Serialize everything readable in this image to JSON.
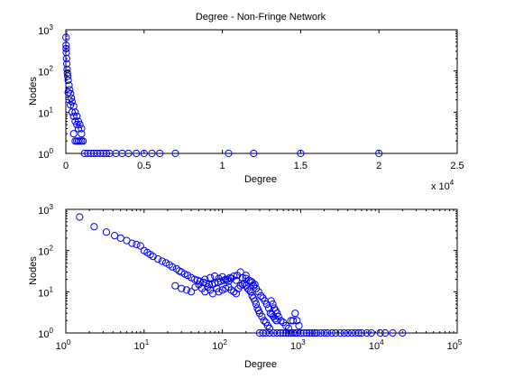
{
  "chart_data": [
    {
      "type": "scatter",
      "title": "Degree - Non-Fringe Network",
      "xlabel": "Degree",
      "ylabel": "Nodes",
      "x_scale": "linear",
      "y_scale": "log",
      "xlim": [
        0,
        25000
      ],
      "ylim": [
        1,
        1000
      ],
      "x_ticks": [
        "0",
        "0.5",
        "1",
        "1.5",
        "2",
        "2.5"
      ],
      "x_multiplier": "x 10",
      "x_multiplier_exp": "4",
      "y_ticks": [
        {
          "base": "10",
          "exp": "0"
        },
        {
          "base": "10",
          "exp": "1"
        },
        {
          "base": "10",
          "exp": "2"
        },
        {
          "base": "10",
          "exp": "3"
        }
      ],
      "marker": "open-circle",
      "marker_color": "#0000ff",
      "points": [
        [
          10,
          650
        ],
        [
          15,
          420
        ],
        [
          22,
          350
        ],
        [
          30,
          280
        ],
        [
          45,
          200
        ],
        [
          60,
          150
        ],
        [
          80,
          110
        ],
        [
          100,
          90
        ],
        [
          120,
          75
        ],
        [
          150,
          60
        ],
        [
          200,
          45
        ],
        [
          250,
          35
        ],
        [
          300,
          28
        ],
        [
          350,
          22
        ],
        [
          400,
          18
        ],
        [
          500,
          14
        ],
        [
          600,
          10
        ],
        [
          700,
          8
        ],
        [
          800,
          6
        ],
        [
          900,
          5
        ],
        [
          1000,
          4
        ],
        [
          150,
          30
        ],
        [
          200,
          20
        ],
        [
          300,
          15
        ],
        [
          400,
          10
        ],
        [
          500,
          8
        ],
        [
          600,
          6
        ],
        [
          700,
          5
        ],
        [
          800,
          4
        ],
        [
          1000,
          3
        ],
        [
          500,
          3
        ],
        [
          600,
          2
        ],
        [
          700,
          2
        ],
        [
          800,
          2
        ],
        [
          900,
          2
        ],
        [
          1000,
          2
        ],
        [
          1100,
          2
        ],
        [
          1200,
          1
        ],
        [
          1400,
          1
        ],
        [
          1600,
          1
        ],
        [
          1800,
          1
        ],
        [
          2000,
          1
        ],
        [
          2200,
          1
        ],
        [
          2400,
          1
        ],
        [
          2600,
          1
        ],
        [
          2800,
          1
        ],
        [
          3200,
          1
        ],
        [
          3600,
          1
        ],
        [
          4000,
          1
        ],
        [
          4500,
          1
        ],
        [
          5000,
          1
        ],
        [
          5500,
          1
        ],
        [
          6000,
          1
        ],
        [
          7000,
          1
        ],
        [
          10400,
          1
        ],
        [
          12000,
          1
        ],
        [
          15000,
          1
        ],
        [
          20000,
          1
        ]
      ]
    },
    {
      "type": "scatter",
      "title": "",
      "xlabel": "Degree",
      "ylabel": "Nodes",
      "x_scale": "log",
      "y_scale": "log",
      "xlim": [
        1,
        100000
      ],
      "ylim": [
        1,
        1000
      ],
      "x_ticks": [
        {
          "base": "10",
          "exp": "0"
        },
        {
          "base": "10",
          "exp": "1"
        },
        {
          "base": "10",
          "exp": "2"
        },
        {
          "base": "10",
          "exp": "3"
        },
        {
          "base": "10",
          "exp": "4"
        },
        {
          "base": "10",
          "exp": "5"
        }
      ],
      "y_ticks": [
        {
          "base": "10",
          "exp": "0"
        },
        {
          "base": "10",
          "exp": "1"
        },
        {
          "base": "10",
          "exp": "2"
        },
        {
          "base": "10",
          "exp": "3"
        }
      ],
      "marker": "open-circle",
      "marker_color": "#0000ff",
      "points": [
        [
          1.5,
          650
        ],
        [
          2.3,
          380
        ],
        [
          3.3,
          280
        ],
        [
          4.2,
          230
        ],
        [
          5,
          200
        ],
        [
          6,
          175
        ],
        [
          7,
          150
        ],
        [
          8,
          140
        ],
        [
          9,
          130
        ],
        [
          10,
          100
        ],
        [
          11,
          90
        ],
        [
          12,
          80
        ],
        [
          13,
          72
        ],
        [
          15,
          62
        ],
        [
          17,
          55
        ],
        [
          19,
          50
        ],
        [
          21,
          45
        ],
        [
          23,
          40
        ],
        [
          26,
          36
        ],
        [
          28,
          32
        ],
        [
          30,
          30
        ],
        [
          33,
          27
        ],
        [
          36,
          25
        ],
        [
          40,
          22
        ],
        [
          44,
          20
        ],
        [
          48,
          19
        ],
        [
          52,
          18
        ],
        [
          57,
          17
        ],
        [
          62,
          16
        ],
        [
          68,
          15
        ],
        [
          74,
          15
        ],
        [
          80,
          16
        ],
        [
          88,
          17
        ],
        [
          95,
          18
        ],
        [
          105,
          19
        ],
        [
          115,
          20
        ],
        [
          125,
          22
        ],
        [
          140,
          24
        ],
        [
          155,
          25
        ],
        [
          170,
          30
        ],
        [
          25,
          14
        ],
        [
          30,
          12
        ],
        [
          35,
          11
        ],
        [
          40,
          10
        ],
        [
          45,
          13
        ],
        [
          50,
          15
        ],
        [
          55,
          12
        ],
        [
          60,
          10
        ],
        [
          65,
          13
        ],
        [
          70,
          11
        ],
        [
          75,
          9
        ],
        [
          85,
          12
        ],
        [
          90,
          10
        ],
        [
          100,
          11
        ],
        [
          110,
          12
        ],
        [
          120,
          13
        ],
        [
          130,
          11
        ],
        [
          140,
          10
        ],
        [
          150,
          9
        ],
        [
          160,
          12
        ],
        [
          170,
          14
        ],
        [
          180,
          15
        ],
        [
          190,
          16
        ],
        [
          200,
          14
        ],
        [
          210,
          12
        ],
        [
          220,
          11
        ],
        [
          230,
          10
        ],
        [
          240,
          8
        ],
        [
          250,
          7
        ],
        [
          260,
          6
        ],
        [
          270,
          5
        ],
        [
          280,
          4
        ],
        [
          290,
          3.5
        ],
        [
          300,
          3
        ],
        [
          320,
          2.5
        ],
        [
          340,
          2
        ],
        [
          360,
          1.8
        ],
        [
          380,
          1.5
        ],
        [
          400,
          1.3
        ],
        [
          420,
          6
        ],
        [
          440,
          5
        ],
        [
          460,
          4
        ],
        [
          480,
          3.5
        ],
        [
          500,
          3
        ],
        [
          520,
          2.5
        ],
        [
          560,
          2
        ],
        [
          600,
          1.8
        ],
        [
          650,
          1.5
        ],
        [
          700,
          1.3
        ],
        [
          750,
          2
        ],
        [
          800,
          2
        ],
        [
          850,
          3
        ],
        [
          900,
          2
        ],
        [
          950,
          1.5
        ],
        [
          60,
          20
        ],
        [
          70,
          22
        ],
        [
          80,
          24
        ],
        [
          90,
          21
        ],
        [
          100,
          23
        ],
        [
          110,
          20
        ],
        [
          120,
          18
        ],
        [
          130,
          21
        ],
        [
          150,
          19
        ],
        [
          180,
          22
        ],
        [
          200,
          21
        ],
        [
          220,
          19
        ],
        [
          240,
          17
        ],
        [
          260,
          15
        ],
        [
          200,
          25
        ],
        [
          230,
          18
        ],
        [
          250,
          14
        ],
        [
          270,
          12
        ],
        [
          290,
          10
        ],
        [
          310,
          8
        ],
        [
          330,
          7
        ],
        [
          350,
          6
        ],
        [
          370,
          5
        ],
        [
          390,
          4
        ],
        [
          410,
          3
        ],
        [
          430,
          2.8
        ],
        [
          450,
          2.5
        ],
        [
          470,
          2.2
        ],
        [
          490,
          2
        ],
        [
          300,
          1
        ],
        [
          330,
          1
        ],
        [
          360,
          1
        ],
        [
          400,
          1
        ],
        [
          450,
          1
        ],
        [
          500,
          1
        ],
        [
          550,
          1
        ],
        [
          600,
          1
        ],
        [
          650,
          1
        ],
        [
          700,
          1
        ],
        [
          750,
          1
        ],
        [
          800,
          1
        ],
        [
          850,
          1
        ],
        [
          900,
          1
        ],
        [
          1000,
          1
        ],
        [
          1100,
          1
        ],
        [
          1200,
          1
        ],
        [
          1300,
          1
        ],
        [
          1400,
          1
        ],
        [
          1500,
          1
        ],
        [
          1600,
          1
        ],
        [
          1800,
          1
        ],
        [
          2000,
          1
        ],
        [
          2200,
          1
        ],
        [
          2500,
          1
        ],
        [
          2800,
          1
        ],
        [
          3200,
          1
        ],
        [
          3600,
          1
        ],
        [
          4000,
          1
        ],
        [
          4500,
          1
        ],
        [
          5000,
          1
        ],
        [
          5500,
          1
        ],
        [
          6000,
          1
        ],
        [
          7000,
          1
        ],
        [
          8000,
          1
        ],
        [
          10400,
          1
        ],
        [
          12000,
          1
        ],
        [
          15000,
          1
        ],
        [
          20000,
          1
        ]
      ]
    }
  ]
}
